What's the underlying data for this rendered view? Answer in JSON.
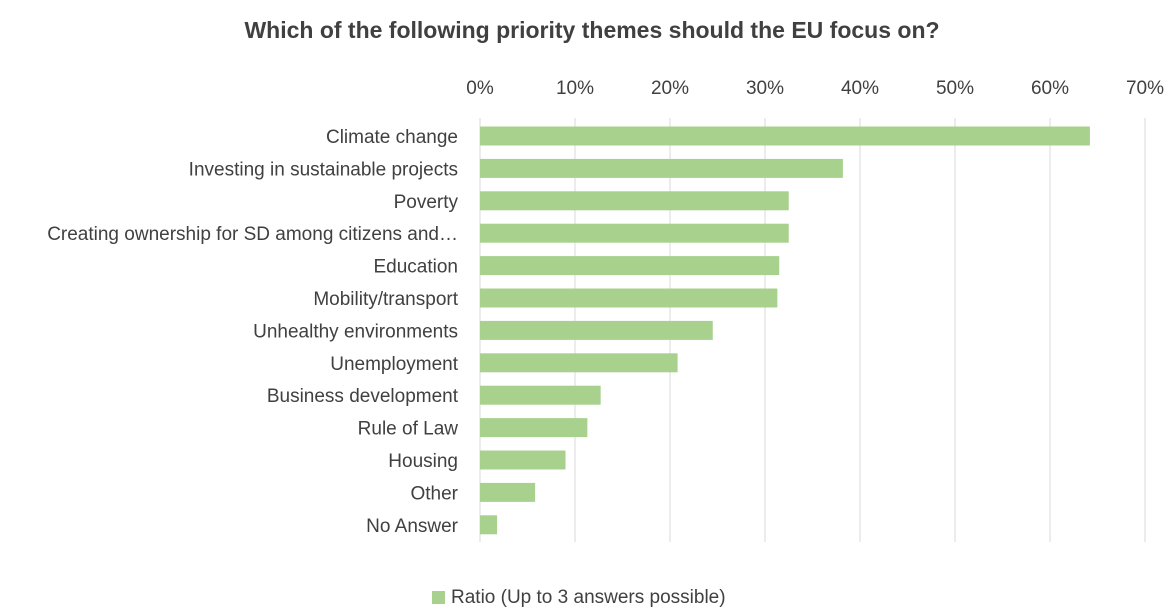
{
  "chart_data": {
    "type": "bar",
    "orientation": "horizontal",
    "title": "Which of the following priority themes should the EU focus on?",
    "categories": [
      "Climate change",
      "Investing in sustainable projects",
      "Poverty",
      "Creating ownership for SD among citizens and…",
      "Education",
      "Mobility/transport",
      "Unhealthy environments",
      "Unemployment",
      "Business development",
      "Rule of Law",
      "Housing",
      "Other",
      "No Answer"
    ],
    "series": [
      {
        "name": "Ratio (Up to 3 answers possible)",
        "values": [
          64.2,
          38.2,
          32.5,
          32.5,
          31.5,
          31.3,
          24.5,
          20.8,
          12.7,
          11.3,
          9.0,
          5.8,
          1.8
        ],
        "color": "#a9d18e"
      }
    ],
    "x_ticks": [
      "0%",
      "10%",
      "20%",
      "30%",
      "40%",
      "50%",
      "60%",
      "70%"
    ],
    "xlim": [
      0,
      70
    ],
    "x_axis_position": "top",
    "grid": true,
    "legend_position": "bottom"
  },
  "colors": {
    "bar": "#a9d18e",
    "grid": "#d9d9d9",
    "text": "#404040"
  }
}
